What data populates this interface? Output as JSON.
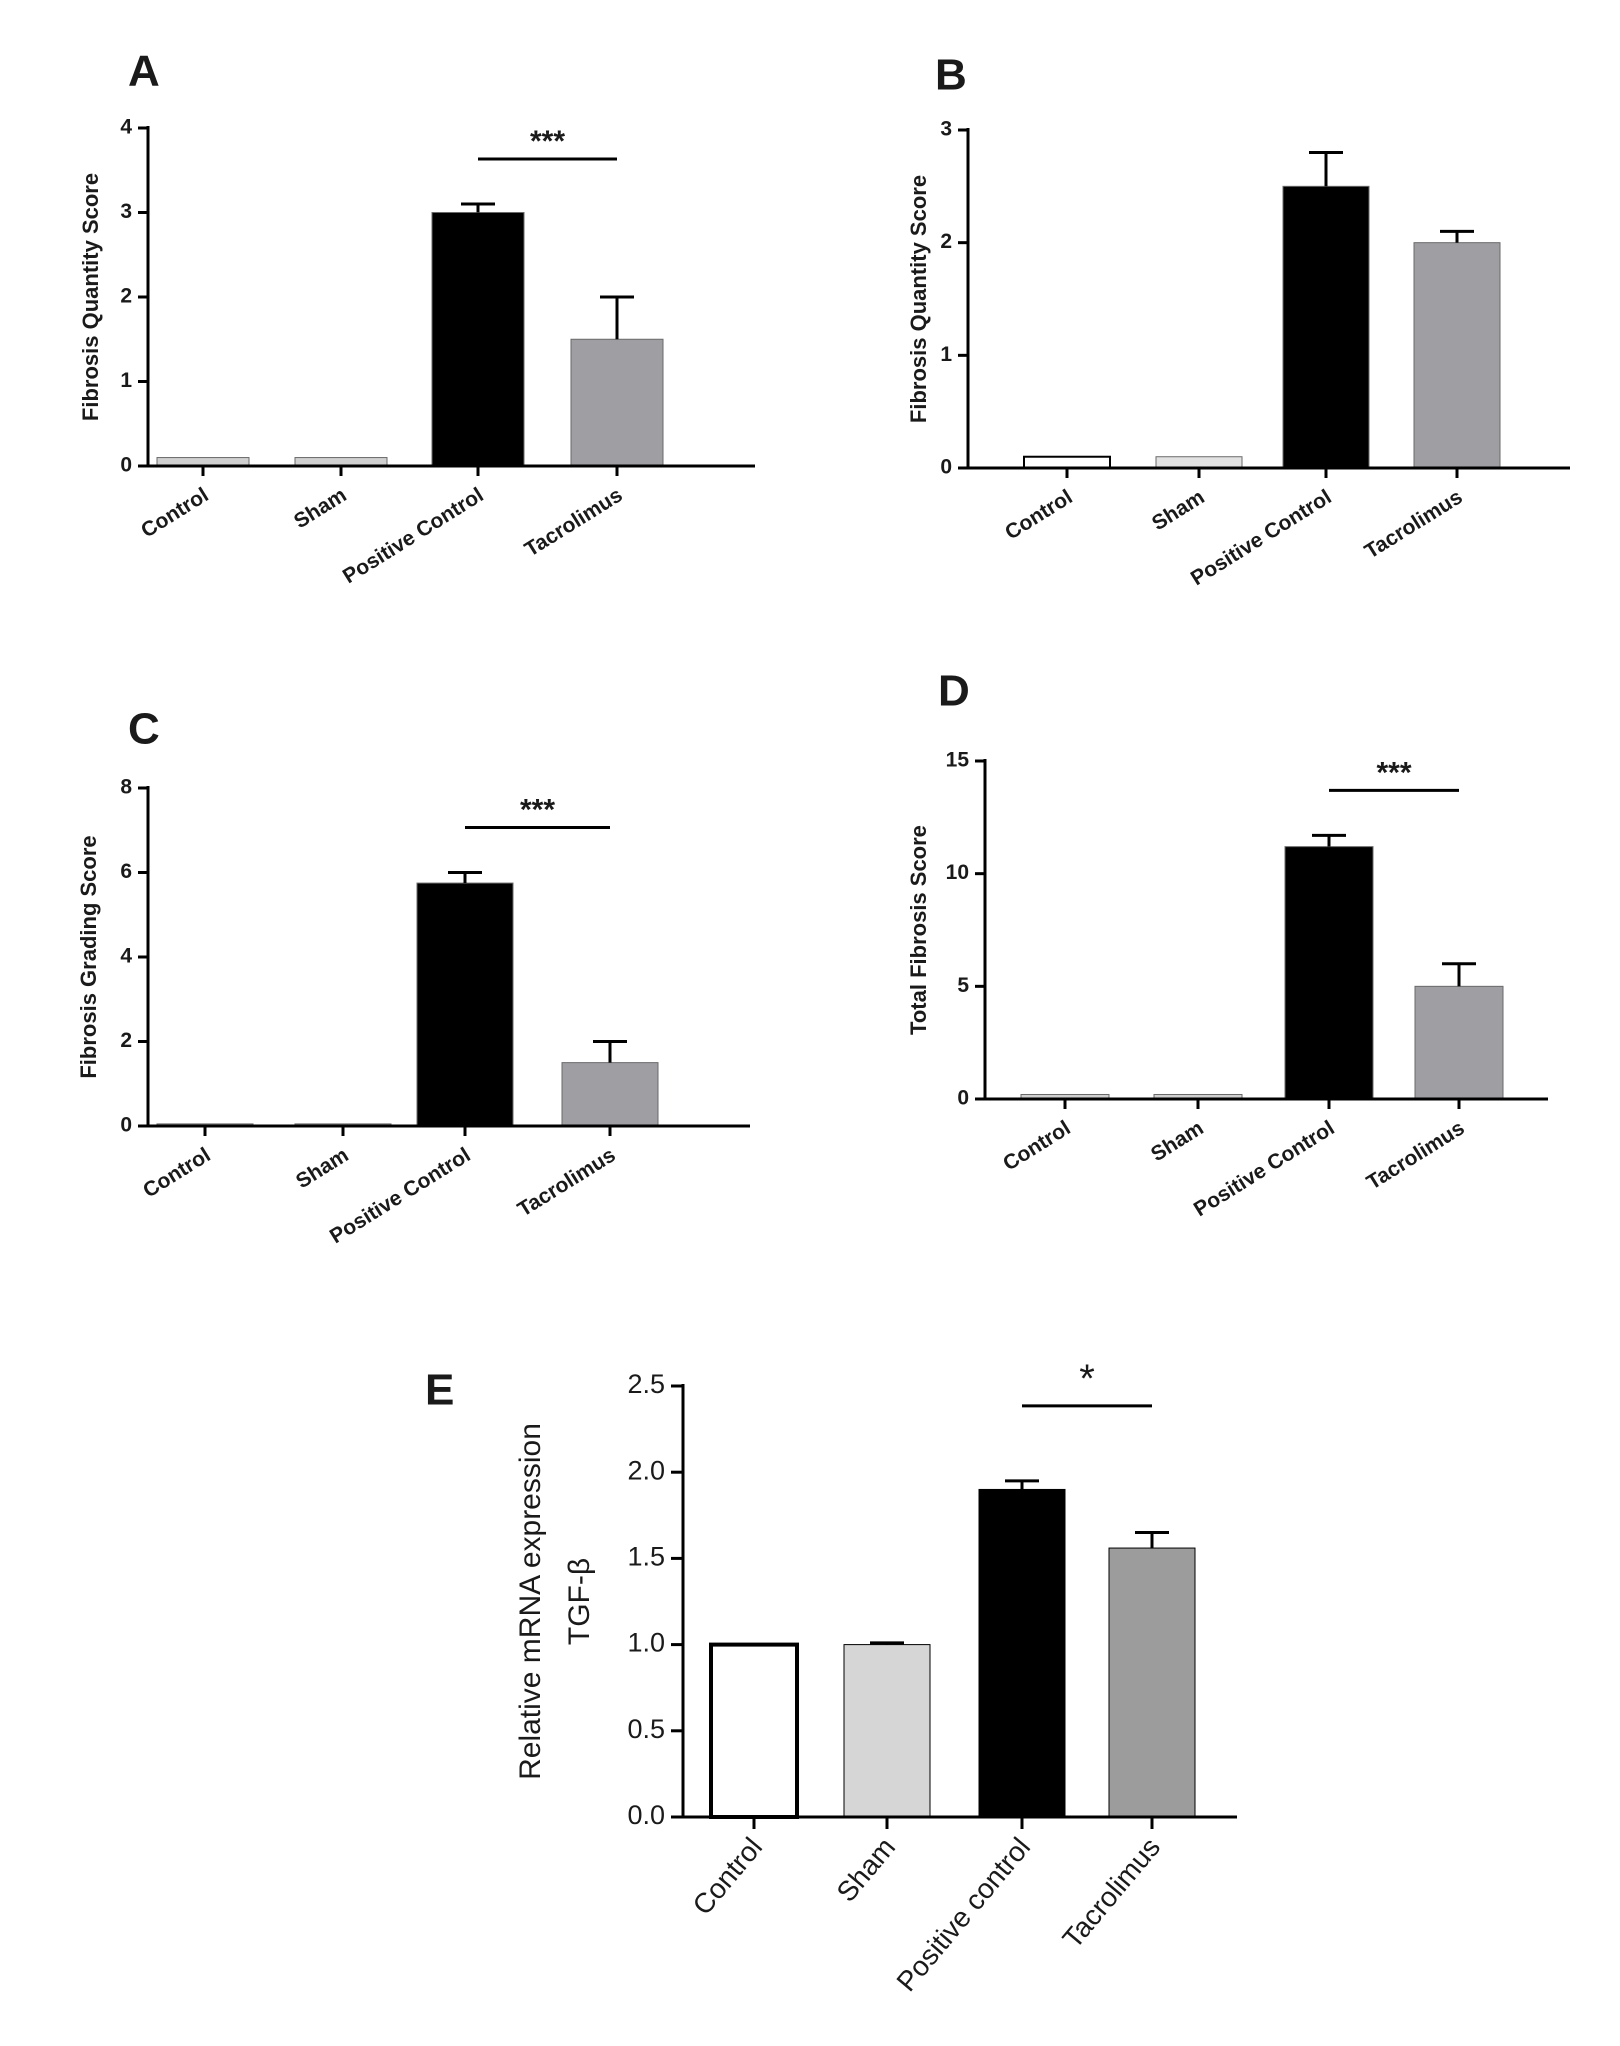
{
  "chart_data": [
    {
      "panel": "A",
      "type": "bar",
      "categories": [
        "Control",
        "Sham",
        "Positive Control",
        "Tacrolimus"
      ],
      "values": [
        0.1,
        0.1,
        3.0,
        1.5
      ],
      "errors": [
        0,
        0,
        0.1,
        0.5
      ],
      "colors": [
        "#d0d0d0",
        "#d0d0d0",
        "#000000",
        "#9e9ea3"
      ],
      "ylabel": "Fibrosis Quantity Score",
      "ylim": [
        0,
        4
      ],
      "yticks": [
        0,
        1,
        2,
        3,
        4
      ],
      "significance": [
        {
          "from": 2,
          "to": 3,
          "label": "***"
        }
      ]
    },
    {
      "panel": "B",
      "type": "bar",
      "categories": [
        "Control",
        "Sham",
        "Positive Control",
        "Tacrolimus"
      ],
      "values": [
        0.1,
        0.1,
        2.5,
        2.0
      ],
      "errors": [
        0,
        0,
        0.3,
        0.1
      ],
      "colors": [
        "#ffffff",
        "#e2e2e2",
        "#000000",
        "#9e9ea3"
      ],
      "ylabel": "Fibrosis Quantity Score",
      "ylim": [
        0,
        3
      ],
      "yticks": [
        0,
        1,
        2,
        3
      ],
      "significance": []
    },
    {
      "panel": "C",
      "type": "bar",
      "categories": [
        "Control",
        "Sham",
        "Positive Control",
        "Tacrolimus"
      ],
      "values": [
        0.05,
        0.05,
        5.75,
        1.5
      ],
      "errors": [
        0,
        0,
        0.25,
        0.5
      ],
      "colors": [
        "#d0d0d0",
        "#d0d0d0",
        "#000000",
        "#9e9ea3"
      ],
      "ylabel": "Fibrosis Grading Score",
      "ylim": [
        0,
        8
      ],
      "yticks": [
        0,
        2,
        4,
        6,
        8
      ],
      "significance": [
        {
          "from": 2,
          "to": 3,
          "label": "***"
        }
      ]
    },
    {
      "panel": "D",
      "type": "bar",
      "categories": [
        "Control",
        "Sham",
        "Positive Control",
        "Tacrolimus"
      ],
      "values": [
        0.2,
        0.2,
        11.2,
        5.0
      ],
      "errors": [
        0,
        0,
        0.5,
        1.0
      ],
      "colors": [
        "#d0d0d0",
        "#d0d0d0",
        "#000000",
        "#9e9ea3"
      ],
      "ylabel": "Total Fibrosis Score",
      "ylim": [
        0,
        15
      ],
      "yticks": [
        0,
        5,
        10,
        15
      ],
      "significance": [
        {
          "from": 2,
          "to": 3,
          "label": "***"
        }
      ]
    },
    {
      "panel": "E",
      "type": "bar",
      "categories": [
        "Control",
        "Sham",
        "Positive control",
        "Tacrolimus"
      ],
      "values": [
        1.0,
        1.0,
        1.9,
        1.56
      ],
      "errors": [
        0,
        0.01,
        0.05,
        0.09
      ],
      "colors": [
        "#ffffff",
        "#d6d6d6",
        "#000000",
        "#9c9c9c"
      ],
      "ylabel": [
        "Relative mRNA expression",
        "TGF-β"
      ],
      "ylim": [
        0,
        2.5
      ],
      "yticks": [
        "0.0",
        "0.5",
        "1.0",
        "1.5",
        "2.0",
        "2.5"
      ],
      "significance": [
        {
          "from": 2,
          "to": 3,
          "label": "*"
        }
      ]
    }
  ]
}
